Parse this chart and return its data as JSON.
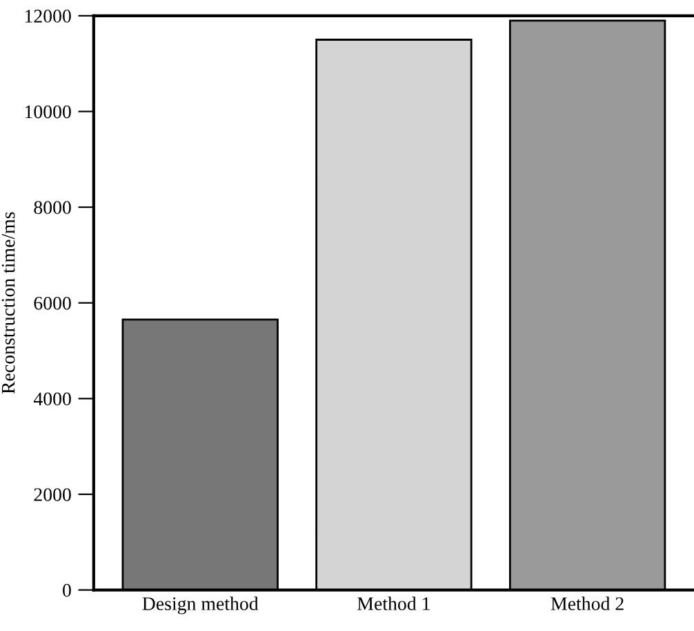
{
  "chart_data": {
    "type": "bar",
    "ylabel": "Reconstruction time/ms",
    "categories": [
      "Design method",
      "Method 1",
      "Method 2"
    ],
    "values": [
      5650,
      11500,
      11900
    ],
    "colors": [
      "#777777",
      "#d4d4d4",
      "#9a9a9a"
    ],
    "ylim": [
      0,
      12000
    ],
    "yticks": [
      0,
      2000,
      4000,
      6000,
      8000,
      10000,
      12000
    ],
    "grid": false
  }
}
